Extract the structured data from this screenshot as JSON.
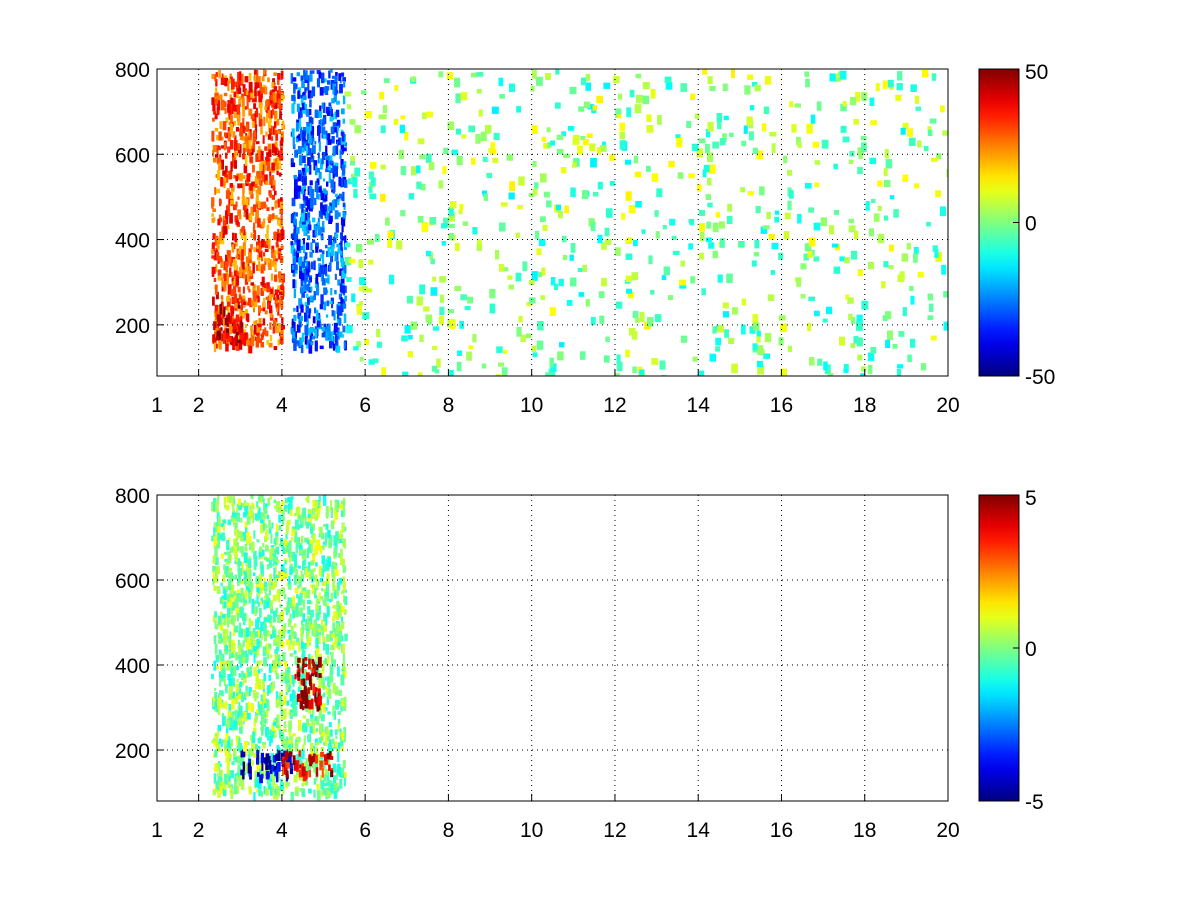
{
  "chart_data": [
    {
      "type": "heatmap",
      "title": "",
      "xlabel": "",
      "ylabel": "",
      "xlim": [
        1,
        20
      ],
      "ylim": [
        80,
        800
      ],
      "x_ticks": [
        1,
        2,
        4,
        6,
        8,
        10,
        12,
        14,
        16,
        18,
        20
      ],
      "x_tick_labels": [
        "1",
        "2",
        "4",
        "6",
        "8",
        "10",
        "12",
        "14",
        "16",
        "18",
        "20"
      ],
      "y_ticks": [
        200,
        400,
        600,
        800
      ],
      "y_tick_labels": [
        "200",
        "400",
        "600",
        "800"
      ],
      "grid": true,
      "colormap": "jet",
      "colorbar": {
        "range": [
          -50,
          50
        ],
        "ticks": [
          50,
          0,
          -50
        ],
        "tick_labels": [
          "50",
          "0",
          "-50"
        ],
        "placement": "right"
      },
      "features": [
        {
          "x": [
            2.3,
            4.0
          ],
          "y": [
            150,
            800
          ],
          "level": 30
        },
        {
          "x": [
            2.4,
            3.0
          ],
          "y": [
            160,
            250
          ],
          "level": 45
        },
        {
          "x": [
            4.2,
            5.5
          ],
          "y": [
            150,
            800
          ],
          "level": -28
        },
        {
          "x": [
            5.5,
            20.0
          ],
          "y": [
            80,
            800
          ],
          "level": 0,
          "sparse": true
        }
      ]
    },
    {
      "type": "heatmap",
      "title": "",
      "xlabel": "",
      "ylabel": "",
      "xlim": [
        1,
        20
      ],
      "ylim": [
        80,
        800
      ],
      "x_ticks": [
        1,
        2,
        4,
        6,
        8,
        10,
        12,
        14,
        16,
        18,
        20
      ],
      "x_tick_labels": [
        "1",
        "2",
        "4",
        "6",
        "8",
        "10",
        "12",
        "14",
        "16",
        "18",
        "20"
      ],
      "y_ticks": [
        200,
        400,
        600,
        800
      ],
      "y_tick_labels": [
        "200",
        "400",
        "600",
        "800"
      ],
      "grid": true,
      "colormap": "jet",
      "colorbar": {
        "range": [
          -5,
          5
        ],
        "ticks": [
          5,
          0,
          -5
        ],
        "tick_labels": [
          "5",
          "0",
          "-5"
        ],
        "placement": "right"
      },
      "features": [
        {
          "x": [
            2.3,
            5.5
          ],
          "y": [
            100,
            800
          ],
          "level": 0
        },
        {
          "x": [
            3.0,
            4.2
          ],
          "y": [
            140,
            200
          ],
          "level": -4.5
        },
        {
          "x": [
            4.3,
            4.9
          ],
          "y": [
            300,
            420
          ],
          "level": 4.5
        },
        {
          "x": [
            4.0,
            5.2
          ],
          "y": [
            150,
            200
          ],
          "level": 4
        }
      ]
    }
  ]
}
